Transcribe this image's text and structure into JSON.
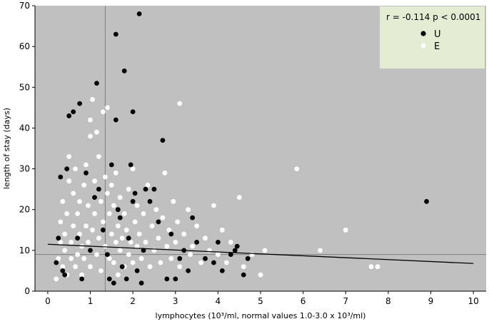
{
  "chart_data": {
    "type": "scatter",
    "title": "",
    "xlabel": "lymphocytes (10³/ml, normal values 1.0-3.0 x 10³/ml)",
    "ylabel": "length of stay (days)",
    "xlim": [
      -0.3,
      10.3
    ],
    "ylim": [
      0,
      70
    ],
    "xticks": [
      0,
      1,
      2,
      3,
      4,
      5,
      6,
      7,
      8,
      9,
      10
    ],
    "yticks": [
      0,
      10,
      20,
      30,
      40,
      50,
      60,
      70
    ],
    "grid": false,
    "legend_position": "top-right",
    "annotation": "r = -0.114  p < 0.0001",
    "reference_lines": {
      "x": 1.35,
      "y": 9
    },
    "regression_line": {
      "x": [
        0,
        10
      ],
      "y": [
        11.5,
        6.8
      ]
    },
    "colors": {
      "plot_background": "#c0c0c0",
      "legend_background": "#e5ecd4",
      "U": "#000000",
      "E": "#ffffff"
    },
    "series": [
      {
        "name": "U",
        "color": "#000000",
        "points": [
          [
            0.2,
            7
          ],
          [
            0.25,
            13
          ],
          [
            0.3,
            28
          ],
          [
            0.35,
            5
          ],
          [
            0.4,
            4
          ],
          [
            0.45,
            30
          ],
          [
            0.5,
            43
          ],
          [
            0.6,
            44
          ],
          [
            0.75,
            46
          ],
          [
            0.7,
            13
          ],
          [
            0.8,
            3
          ],
          [
            0.9,
            29
          ],
          [
            1.0,
            10
          ],
          [
            1.1,
            23
          ],
          [
            1.15,
            51
          ],
          [
            1.2,
            25
          ],
          [
            1.3,
            15
          ],
          [
            1.4,
            9
          ],
          [
            1.45,
            3
          ],
          [
            1.5,
            31
          ],
          [
            1.55,
            2
          ],
          [
            1.6,
            63
          ],
          [
            1.6,
            42
          ],
          [
            1.65,
            20
          ],
          [
            1.7,
            18
          ],
          [
            1.75,
            6
          ],
          [
            1.8,
            54
          ],
          [
            1.85,
            3
          ],
          [
            1.9,
            13
          ],
          [
            1.95,
            31
          ],
          [
            2.0,
            44
          ],
          [
            2.0,
            22
          ],
          [
            2.05,
            24
          ],
          [
            2.1,
            5
          ],
          [
            2.15,
            68
          ],
          [
            2.2,
            2
          ],
          [
            2.25,
            10
          ],
          [
            2.3,
            25
          ],
          [
            2.4,
            22
          ],
          [
            2.5,
            25
          ],
          [
            2.6,
            17
          ],
          [
            2.7,
            37
          ],
          [
            2.8,
            3
          ],
          [
            2.9,
            14
          ],
          [
            3.0,
            3
          ],
          [
            3.1,
            8
          ],
          [
            3.2,
            10
          ],
          [
            3.3,
            5
          ],
          [
            3.4,
            18
          ],
          [
            3.5,
            12
          ],
          [
            3.7,
            8
          ],
          [
            3.9,
            7
          ],
          [
            4.0,
            12
          ],
          [
            4.1,
            5
          ],
          [
            4.3,
            9
          ],
          [
            4.4,
            10
          ],
          [
            4.45,
            11
          ],
          [
            4.6,
            4
          ],
          [
            4.7,
            8
          ],
          [
            8.9,
            22
          ]
        ]
      },
      {
        "name": "E",
        "color": "#ffffff",
        "points": [
          [
            0.2,
            3
          ],
          [
            0.25,
            8
          ],
          [
            0.3,
            12
          ],
          [
            0.3,
            17
          ],
          [
            0.35,
            6
          ],
          [
            0.35,
            22
          ],
          [
            0.4,
            10
          ],
          [
            0.4,
            14
          ],
          [
            0.45,
            4
          ],
          [
            0.45,
            19
          ],
          [
            0.5,
            27
          ],
          [
            0.5,
            33
          ],
          [
            0.55,
            8
          ],
          [
            0.55,
            12
          ],
          [
            0.6,
            16
          ],
          [
            0.6,
            24
          ],
          [
            0.65,
            30
          ],
          [
            0.65,
            6
          ],
          [
            0.7,
            9
          ],
          [
            0.7,
            19
          ],
          [
            0.75,
            14
          ],
          [
            0.75,
            22
          ],
          [
            0.8,
            4
          ],
          [
            0.8,
            11
          ],
          [
            0.85,
            26
          ],
          [
            0.85,
            8
          ],
          [
            0.9,
            16
          ],
          [
            0.9,
            31
          ],
          [
            0.95,
            12
          ],
          [
            0.95,
            21
          ],
          [
            1.0,
            6
          ],
          [
            1.0,
            38
          ],
          [
            1.0,
            42
          ],
          [
            1.05,
            15
          ],
          [
            1.05,
            47
          ],
          [
            1.1,
            19
          ],
          [
            1.1,
            27
          ],
          [
            1.15,
            9
          ],
          [
            1.15,
            39
          ],
          [
            1.2,
            13
          ],
          [
            1.2,
            33
          ],
          [
            1.25,
            5
          ],
          [
            1.25,
            22
          ],
          [
            1.3,
            44
          ],
          [
            1.3,
            17
          ],
          [
            1.35,
            28
          ],
          [
            1.35,
            11
          ],
          [
            1.4,
            45
          ],
          [
            1.4,
            24
          ],
          [
            1.45,
            8
          ],
          [
            1.45,
            19
          ],
          [
            1.5,
            14
          ],
          [
            1.5,
            26
          ],
          [
            1.55,
            7
          ],
          [
            1.55,
            21
          ],
          [
            1.6,
            12
          ],
          [
            1.6,
            29
          ],
          [
            1.65,
            4
          ],
          [
            1.65,
            16
          ],
          [
            1.7,
            10
          ],
          [
            1.7,
            23
          ],
          [
            1.75,
            13
          ],
          [
            1.8,
            6
          ],
          [
            1.8,
            19
          ],
          [
            1.85,
            15
          ],
          [
            1.9,
            9
          ],
          [
            1.9,
            25
          ],
          [
            1.95,
            12
          ],
          [
            2.0,
            30
          ],
          [
            2.0,
            7
          ],
          [
            2.05,
            17
          ],
          [
            2.1,
            11
          ],
          [
            2.1,
            21
          ],
          [
            2.15,
            14
          ],
          [
            2.2,
            8
          ],
          [
            2.25,
            19
          ],
          [
            2.3,
            12
          ],
          [
            2.35,
            26
          ],
          [
            2.4,
            6
          ],
          [
            2.45,
            16
          ],
          [
            2.5,
            10
          ],
          [
            2.55,
            20
          ],
          [
            2.6,
            13
          ],
          [
            2.65,
            7
          ],
          [
            2.7,
            18
          ],
          [
            2.75,
            29
          ],
          [
            2.8,
            11
          ],
          [
            2.85,
            15
          ],
          [
            2.9,
            8
          ],
          [
            2.95,
            22
          ],
          [
            3.0,
            12
          ],
          [
            3.05,
            17
          ],
          [
            3.1,
            46
          ],
          [
            3.1,
            6
          ],
          [
            3.2,
            14
          ],
          [
            3.3,
            20
          ],
          [
            3.35,
            9
          ],
          [
            3.4,
            11
          ],
          [
            3.5,
            16
          ],
          [
            3.6,
            7
          ],
          [
            3.7,
            13
          ],
          [
            3.8,
            10
          ],
          [
            3.9,
            21
          ],
          [
            4.0,
            9
          ],
          [
            4.1,
            15
          ],
          [
            4.2,
            7
          ],
          [
            4.3,
            12
          ],
          [
            4.5,
            23
          ],
          [
            4.6,
            6
          ],
          [
            4.8,
            9
          ],
          [
            5.0,
            4
          ],
          [
            5.1,
            10
          ],
          [
            5.85,
            30
          ],
          [
            6.4,
            10
          ],
          [
            7.0,
            15
          ],
          [
            7.6,
            6
          ],
          [
            7.75,
            6
          ]
        ]
      }
    ]
  }
}
